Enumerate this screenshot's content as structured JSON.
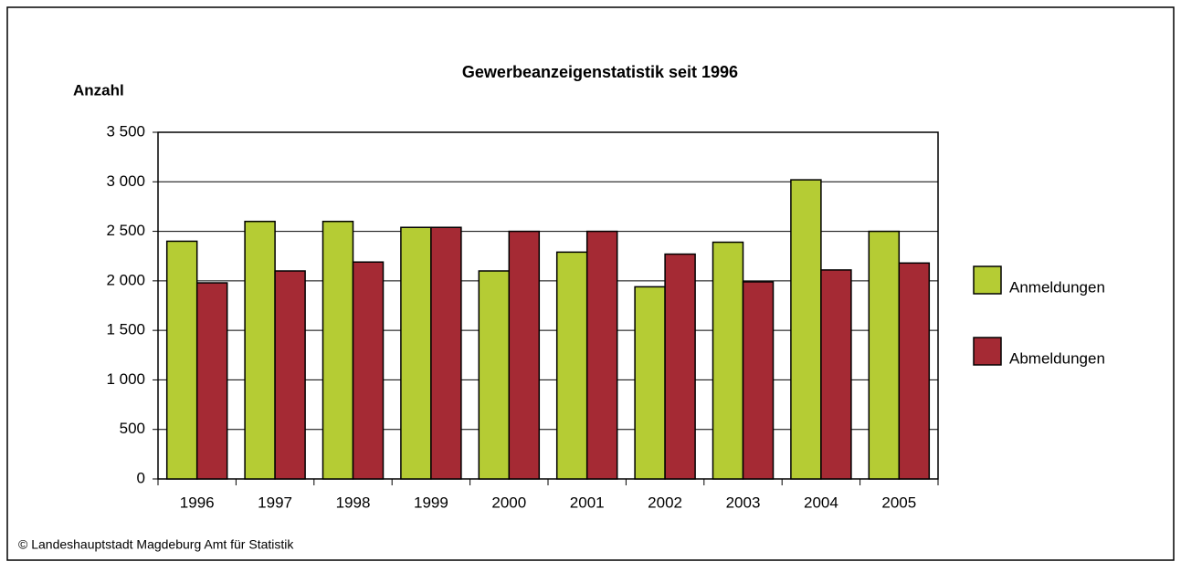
{
  "chart_data": {
    "type": "bar",
    "title": "Gewerbeanzeigenstatistik seit 1996",
    "y_label": "Anzahl",
    "categories": [
      "1996",
      "1997",
      "1998",
      "1999",
      "2000",
      "2001",
      "2002",
      "2003",
      "2004",
      "2005"
    ],
    "series": [
      {
        "name": "Anmeldungen",
        "color": "#b5cc34",
        "values": [
          2400,
          2600,
          2600,
          2540,
          2100,
          2290,
          1940,
          2390,
          3020,
          2500
        ]
      },
      {
        "name": "Abmeldungen",
        "color": "#a52a34",
        "values": [
          1980,
          2100,
          2190,
          2540,
          2500,
          2500,
          2270,
          1990,
          2110,
          2180
        ]
      }
    ],
    "ylim": [
      0,
      3500
    ],
    "yticks": [
      0,
      500,
      {
        "value": 1000,
        "label": "1 000"
      },
      {
        "value": 1500,
        "label": "1 500"
      },
      {
        "value": 2000,
        "label": "2 000"
      },
      {
        "value": 2500,
        "label": "2 500"
      },
      {
        "value": 3000,
        "label": "3 000"
      },
      {
        "value": 3500,
        "label": "3 500"
      }
    ],
    "grid": true,
    "legend": "right",
    "footer": "©  Landeshauptstadt Magdeburg   Amt für Statistik"
  }
}
